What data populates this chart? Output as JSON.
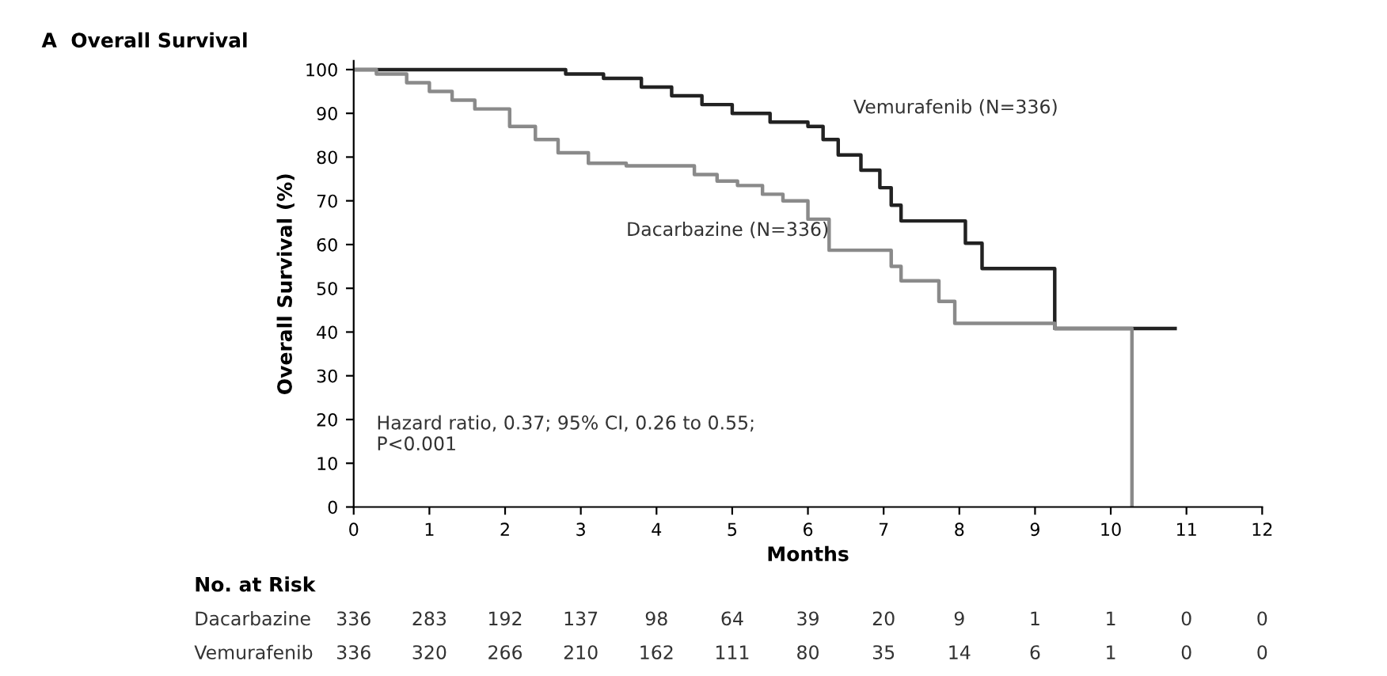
{
  "chart_data": {
    "type": "step",
    "title": "A  Overall Survival",
    "xlabel": "Months",
    "ylabel": "Overall Survival (%)",
    "xlim": [
      0,
      12
    ],
    "xticks": [
      0,
      1,
      2,
      3,
      4,
      5,
      6,
      7,
      8,
      9,
      10,
      11,
      12
    ],
    "ylim": [
      0,
      102
    ],
    "yticks": [
      0,
      10,
      20,
      30,
      40,
      50,
      60,
      70,
      80,
      90,
      100
    ],
    "grid": false,
    "legend": false,
    "marker": "none",
    "line_style": "solid",
    "series": [
      {
        "name": "Vemurafenib (N=336)",
        "color": "#222222",
        "x": [
          0,
          2.4,
          2.8,
          3.3,
          3.8,
          4.2,
          4.6,
          5.0,
          5.5,
          6.0,
          6.2,
          6.4,
          6.7,
          6.95,
          7.1,
          7.23,
          8.08,
          8.3,
          9.26,
          10.85
        ],
        "values": [
          100,
          100,
          99,
          98,
          96,
          94,
          92,
          90,
          88,
          87,
          84,
          80.5,
          77,
          73,
          69,
          65.4,
          60.3,
          54.5,
          40.8,
          40.8
        ]
      },
      {
        "name": "Dacarbazine (N=336)",
        "color": "#8a8a8a",
        "x": [
          0,
          0.3,
          0.7,
          1.0,
          1.3,
          1.6,
          2.06,
          2.4,
          2.7,
          3.1,
          3.6,
          4.16,
          4.5,
          4.8,
          5.07,
          5.4,
          5.67,
          6.0,
          6.28,
          7.1,
          7.23,
          7.73,
          7.94,
          9.26,
          10.28
        ],
        "values": [
          100,
          99,
          97,
          95,
          93,
          91,
          87,
          84,
          81,
          78.6,
          78,
          78,
          76,
          74.5,
          73.5,
          71.5,
          70,
          65.8,
          58.7,
          55,
          51.7,
          47,
          42,
          40.8,
          0
        ]
      }
    ],
    "annotations": [
      "Hazard ratio, 0.37; 95% CI, 0.26 to 0.55;\nP<0.001",
      "No. at Risk",
      "Dacarbazine 336 283 192 137 98 64 39 20 9 1 1 0 0",
      "Vemurafenib 336 320 266 210 162 111 80 35 14 6 1 0 0"
    ]
  }
}
